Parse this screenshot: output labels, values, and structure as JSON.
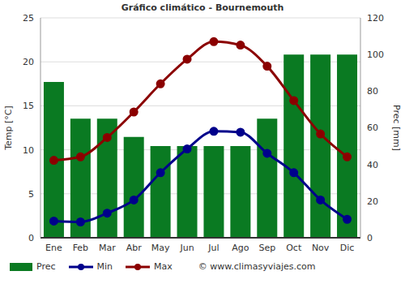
{
  "chart_data": {
    "type": "bar",
    "title": "Gráfico climático - Bournemouth",
    "categories": [
      "Ene",
      "Feb",
      "Mar",
      "Abr",
      "May",
      "Jun",
      "Jul",
      "Ago",
      "Sep",
      "Oct",
      "Nov",
      "Dic"
    ],
    "series": [
      {
        "name": "Prec",
        "type": "bar",
        "axis": "y2",
        "color": "#0a7a22",
        "values": [
          85,
          65,
          65,
          55,
          50,
          50,
          50,
          50,
          65,
          100,
          100,
          100
        ]
      },
      {
        "name": "Min",
        "type": "line",
        "color": "#00008b",
        "marker": "circle",
        "values": [
          1.9,
          1.8,
          2.8,
          4.3,
          7.4,
          10.1,
          12.1,
          12.0,
          9.6,
          7.4,
          4.3,
          2.1
        ]
      },
      {
        "name": "Max",
        "type": "line",
        "color": "#8b0000",
        "marker": "circle",
        "values": [
          8.8,
          9.2,
          11.4,
          14.3,
          17.5,
          20.3,
          22.3,
          21.9,
          19.5,
          15.6,
          11.8,
          9.2
        ]
      }
    ],
    "ylabel": "Temp [°C]",
    "y2label": "Prec [mm]",
    "ylim": [
      0,
      25
    ],
    "yticks": [
      0,
      5,
      10,
      15,
      20,
      25
    ],
    "y2lim": [
      0,
      120
    ],
    "y2ticks": [
      0,
      20,
      40,
      60,
      80,
      100,
      120
    ],
    "grid": true,
    "legend": "bottom",
    "annotations": [
      "© www.climasyviajes.com"
    ]
  }
}
